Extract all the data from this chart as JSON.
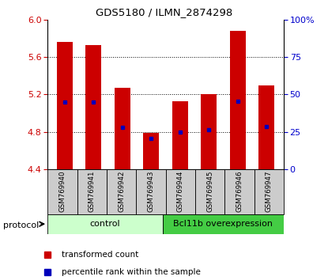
{
  "title": "GDS5180 / ILMN_2874298",
  "samples": [
    "GSM769940",
    "GSM769941",
    "GSM769942",
    "GSM769943",
    "GSM769944",
    "GSM769945",
    "GSM769946",
    "GSM769947"
  ],
  "bar_top": [
    5.76,
    5.73,
    5.27,
    4.79,
    5.13,
    5.2,
    5.88,
    5.3
  ],
  "bar_bottom": 4.4,
  "blue_dot_value": [
    5.12,
    5.12,
    4.85,
    4.73,
    4.8,
    4.82,
    5.13,
    4.86
  ],
  "ylim": [
    4.4,
    6.0
  ],
  "yticks_left": [
    4.4,
    4.8,
    5.2,
    5.6,
    6.0
  ],
  "yticks_right_vals": [
    0,
    25,
    50,
    75,
    100
  ],
  "yticks_right_labels": [
    "0",
    "25",
    "50",
    "75",
    "100%"
  ],
  "bar_color": "#cc0000",
  "dot_color": "#0000bb",
  "control_label": "control",
  "overexp_label": "Bcl11b overexpression",
  "protocol_label": "protocol",
  "legend_bar_label": "transformed count",
  "legend_dot_label": "percentile rank within the sample",
  "control_color": "#ccffcc",
  "overexp_color": "#44cc44",
  "xlabel_color": "#cc0000",
  "ylabel_right_color": "#0000cc",
  "bar_width": 0.55,
  "label_bg_color": "#cccccc",
  "grid_yticks": [
    4.8,
    5.2,
    5.6
  ]
}
